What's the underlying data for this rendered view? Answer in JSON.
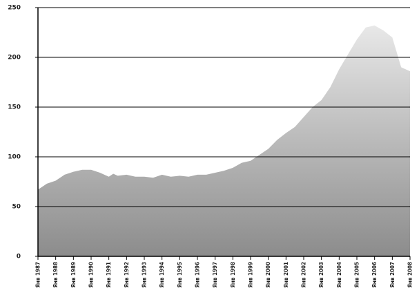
{
  "chart_data": {
    "type": "area",
    "x": [
      1987.0,
      1987.5,
      1988.0,
      1988.5,
      1989.0,
      1989.5,
      1990.0,
      1990.5,
      1991.0,
      1991.25,
      1991.5,
      1992.0,
      1992.5,
      1993.0,
      1993.5,
      1994.0,
      1994.5,
      1995.0,
      1995.5,
      1996.0,
      1996.5,
      1997.0,
      1997.5,
      1998.0,
      1998.5,
      1999.0,
      1999.5,
      2000.0,
      2000.5,
      2001.0,
      2001.5,
      2002.0,
      2002.5,
      2003.0,
      2003.5,
      2004.0,
      2004.5,
      2005.0,
      2005.5,
      2006.0,
      2006.5,
      2007.0,
      2007.25,
      2007.5,
      2008.0
    ],
    "values": [
      67,
      73,
      76,
      82,
      85,
      87,
      87,
      84,
      80,
      83,
      81,
      82,
      80,
      80,
      79,
      82,
      80,
      81,
      80,
      82,
      82,
      84,
      86,
      89,
      94,
      96,
      102,
      108,
      117,
      124,
      130,
      140,
      150,
      157,
      170,
      188,
      203,
      218,
      230,
      232,
      227,
      220,
      205,
      190,
      186
    ],
    "color": "#8c8c8c",
    "xlim": [
      1987,
      2008
    ],
    "xticks": [
      {
        "value": 1987,
        "label": "Янв 1987"
      },
      {
        "value": 1988,
        "label": "Янв 1988"
      },
      {
        "value": 1989,
        "label": "Янв 1989"
      },
      {
        "value": 1990,
        "label": "Янв 1990"
      },
      {
        "value": 1991,
        "label": "Янв 1991"
      },
      {
        "value": 1992,
        "label": "Янв 1992"
      },
      {
        "value": 1993,
        "label": "Янв 1993"
      },
      {
        "value": 1994,
        "label": "Янв 1994"
      },
      {
        "value": 1995,
        "label": "Янв 1995"
      },
      {
        "value": 1996,
        "label": "Янв 1996"
      },
      {
        "value": 1997,
        "label": "Янв 1997"
      },
      {
        "value": 1998,
        "label": "Янв 1998"
      },
      {
        "value": 1999,
        "label": "Янв 1999"
      },
      {
        "value": 2000,
        "label": "Янв 2000"
      },
      {
        "value": 2001,
        "label": "Янв 2001"
      },
      {
        "value": 2002,
        "label": "Янв 2002"
      },
      {
        "value": 2003,
        "label": "Янв 2003"
      },
      {
        "value": 2004,
        "label": "Янв 2004"
      },
      {
        "value": 2005,
        "label": "Янв 2005"
      },
      {
        "value": 2006,
        "label": "Янв 2006"
      },
      {
        "value": 2007,
        "label": "Янв 2007"
      },
      {
        "value": 2008,
        "label": "Янв 2008"
      }
    ],
    "ylim": [
      0,
      250
    ],
    "yticks": [
      0,
      50,
      100,
      150,
      200,
      250
    ],
    "grid": true
  }
}
